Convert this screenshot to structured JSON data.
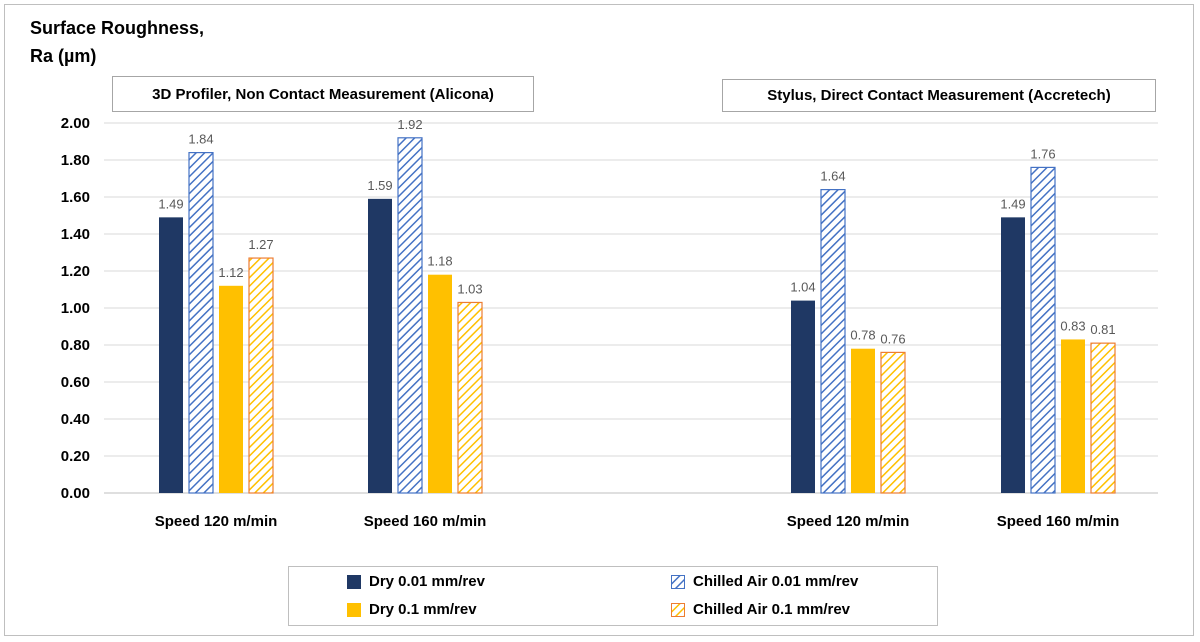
{
  "chart_data": {
    "type": "bar",
    "ylabel": [
      "Surface Roughness,",
      "Ra (µm)"
    ],
    "ylim": [
      0,
      2.0
    ],
    "yticks": [
      "0.00",
      "0.20",
      "0.40",
      "0.60",
      "0.80",
      "1.00",
      "1.20",
      "1.40",
      "1.60",
      "1.80",
      "2.00"
    ],
    "grid": true,
    "legend_position": "bottom",
    "panels": [
      {
        "title": "3D Profiler, Non Contact Measurement (Alicona)",
        "categories": [
          "Speed 120 m/min",
          "Speed 160 m/min"
        ]
      },
      {
        "title": "Stylus, Direct Contact Measurement (Accretech)",
        "categories": [
          "Speed 120 m/min",
          "Speed 160 m/min"
        ]
      }
    ],
    "series": [
      {
        "name": "Dry 0.01 mm/rev",
        "color": "#1f3864",
        "pattern": "solid",
        "values": [
          1.49,
          1.59,
          1.04,
          1.49
        ]
      },
      {
        "name": "Chilled Air 0.01 mm/rev",
        "color": "#4472c4",
        "pattern": "hatched",
        "values": [
          1.84,
          1.92,
          1.64,
          1.76
        ]
      },
      {
        "name": "Dry 0.1 mm/rev",
        "color": "#ffc000",
        "pattern": "solid",
        "values": [
          1.12,
          1.18,
          0.78,
          0.83
        ]
      },
      {
        "name": "Chilled Air 0.1 mm/rev",
        "color": "#ed7d31",
        "pattern": "hatched",
        "values": [
          1.27,
          1.03,
          0.76,
          0.81
        ]
      }
    ],
    "data_labels": [
      [
        "1.49",
        "1.59",
        "1.04",
        "1.49"
      ],
      [
        "1.84",
        "1.92",
        "1.64",
        "1.76"
      ],
      [
        "1.12",
        "1.18",
        "0.78",
        "0.83"
      ],
      [
        "1.27",
        "1.03",
        "0.76",
        "0.81"
      ]
    ]
  },
  "legend": {
    "items": [
      {
        "label": "Dry 0.01 mm/rev"
      },
      {
        "label": "Chilled Air 0.01 mm/rev"
      },
      {
        "label": "Dry 0.1 mm/rev"
      },
      {
        "label": "Chilled Air 0.1 mm/rev"
      }
    ]
  }
}
